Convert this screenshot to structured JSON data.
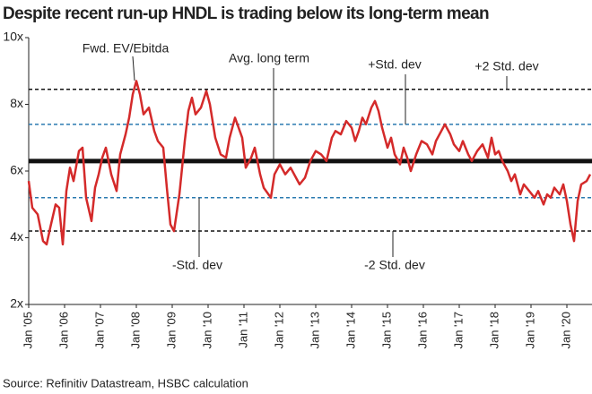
{
  "chart_data": {
    "type": "line",
    "title": "Despite recent run-up HNDL is trading below its long-term mean",
    "source": "Source: Refinitiv Datastream, HSBC calculation",
    "xlim": [
      2005,
      2020.7
    ],
    "xticks": [
      {
        "value": 2005,
        "label": "Jan '05"
      },
      {
        "value": 2006,
        "label": "Jan '06"
      },
      {
        "value": 2007,
        "label": "Jan '07"
      },
      {
        "value": 2008,
        "label": "Jan '08"
      },
      {
        "value": 2009,
        "label": "Jan '09"
      },
      {
        "value": 2010,
        "label": "Jan '10"
      },
      {
        "value": 2011,
        "label": "Jan '11"
      },
      {
        "value": 2012,
        "label": "Jan '12"
      },
      {
        "value": 2013,
        "label": "Jan '13"
      },
      {
        "value": 2014,
        "label": "Jan '14"
      },
      {
        "value": 2015,
        "label": "Jan '15"
      },
      {
        "value": 2016,
        "label": "Jan '16"
      },
      {
        "value": 2017,
        "label": "Jan '17"
      },
      {
        "value": 2018,
        "label": "Jan '18"
      },
      {
        "value": 2019,
        "label": "Jan '19"
      },
      {
        "value": 2020,
        "label": "Jan '20"
      }
    ],
    "ylim": [
      2,
      10
    ],
    "yticks": [
      {
        "value": 2,
        "label": "2x"
      },
      {
        "value": 4,
        "label": "4x"
      },
      {
        "value": 6,
        "label": "6x"
      },
      {
        "value": 8,
        "label": "8x"
      },
      {
        "value": 10,
        "label": "10x"
      }
    ],
    "reference_lines": [
      {
        "name": "Avg. long term",
        "value": 6.3,
        "color": "#111111",
        "style": "solid"
      },
      {
        "name": "+Std. dev",
        "value": 7.4,
        "color": "#2a7ab0",
        "style": "dashed"
      },
      {
        "name": "+2 Std. dev",
        "value": 8.45,
        "color": "#111111",
        "style": "dashed"
      },
      {
        "name": "-Std. dev",
        "value": 5.2,
        "color": "#2a7ab0",
        "style": "dashed"
      },
      {
        "name": "-2 Std. dev",
        "value": 4.2,
        "color": "#111111",
        "style": "dashed"
      }
    ],
    "series": [
      {
        "name": "Fwd. EV/Ebitda",
        "color": "#d42a2a",
        "x": [
          2005.0,
          2005.1,
          2005.25,
          2005.4,
          2005.5,
          2005.6,
          2005.75,
          2005.85,
          2005.95,
          2006.05,
          2006.15,
          2006.25,
          2006.4,
          2006.5,
          2006.6,
          2006.75,
          2006.85,
          2006.95,
          2007.05,
          2007.15,
          2007.3,
          2007.45,
          2007.55,
          2007.7,
          2007.8,
          2007.9,
          2008.0,
          2008.1,
          2008.2,
          2008.35,
          2008.5,
          2008.6,
          2008.75,
          2008.85,
          2008.95,
          2009.05,
          2009.2,
          2009.35,
          2009.45,
          2009.55,
          2009.65,
          2009.8,
          2009.95,
          2010.05,
          2010.2,
          2010.35,
          2010.5,
          2010.6,
          2010.75,
          2010.85,
          2010.95,
          2011.05,
          2011.2,
          2011.3,
          2011.45,
          2011.55,
          2011.75,
          2011.85,
          2012.0,
          2012.15,
          2012.3,
          2012.45,
          2012.55,
          2012.7,
          2012.85,
          2013.0,
          2013.15,
          2013.3,
          2013.45,
          2013.55,
          2013.7,
          2013.85,
          2014.0,
          2014.1,
          2014.2,
          2014.3,
          2014.4,
          2014.55,
          2014.65,
          2014.75,
          2014.85,
          2015.0,
          2015.1,
          2015.2,
          2015.35,
          2015.45,
          2015.55,
          2015.65,
          2015.8,
          2015.95,
          2016.1,
          2016.25,
          2016.35,
          2016.5,
          2016.6,
          2016.75,
          2016.85,
          2017.0,
          2017.1,
          2017.25,
          2017.35,
          2017.5,
          2017.65,
          2017.8,
          2017.9,
          2018.0,
          2018.1,
          2018.2,
          2018.35,
          2018.45,
          2018.55,
          2018.7,
          2018.8,
          2018.95,
          2019.1,
          2019.2,
          2019.35,
          2019.45,
          2019.55,
          2019.65,
          2019.8,
          2019.9,
          2020.0,
          2020.1,
          2020.2,
          2020.3,
          2020.4,
          2020.55,
          2020.65
        ],
        "values": [
          5.7,
          4.9,
          4.7,
          3.9,
          3.8,
          4.3,
          5.0,
          4.9,
          3.8,
          5.4,
          6.1,
          5.7,
          6.6,
          6.7,
          5.2,
          4.5,
          5.5,
          5.9,
          6.4,
          6.7,
          5.9,
          5.4,
          6.5,
          7.1,
          7.6,
          8.3,
          8.7,
          8.3,
          7.7,
          7.9,
          7.2,
          6.9,
          6.7,
          5.5,
          4.4,
          4.2,
          5.3,
          6.9,
          7.8,
          8.2,
          7.7,
          7.9,
          8.4,
          8.0,
          7.0,
          6.5,
          6.4,
          7.0,
          7.6,
          7.3,
          7.0,
          6.1,
          6.4,
          6.7,
          5.9,
          5.5,
          5.2,
          5.9,
          6.2,
          5.9,
          6.1,
          5.8,
          5.6,
          5.8,
          6.3,
          6.6,
          6.5,
          6.3,
          7.0,
          7.2,
          7.1,
          7.5,
          7.3,
          6.9,
          7.2,
          7.6,
          7.4,
          7.9,
          8.1,
          7.8,
          7.3,
          6.7,
          7.0,
          6.5,
          6.2,
          6.7,
          6.4,
          6.0,
          6.5,
          6.9,
          6.8,
          6.5,
          6.9,
          7.2,
          7.4,
          7.1,
          6.8,
          6.6,
          6.9,
          6.5,
          6.3,
          6.6,
          6.8,
          6.4,
          7.0,
          6.5,
          6.6,
          6.3,
          6.0,
          5.7,
          5.9,
          5.3,
          5.6,
          5.4,
          5.2,
          5.4,
          5.0,
          5.3,
          5.2,
          5.5,
          5.3,
          5.6,
          5.1,
          4.4,
          3.9,
          5.1,
          5.6,
          5.7,
          5.9
        ]
      }
    ]
  }
}
